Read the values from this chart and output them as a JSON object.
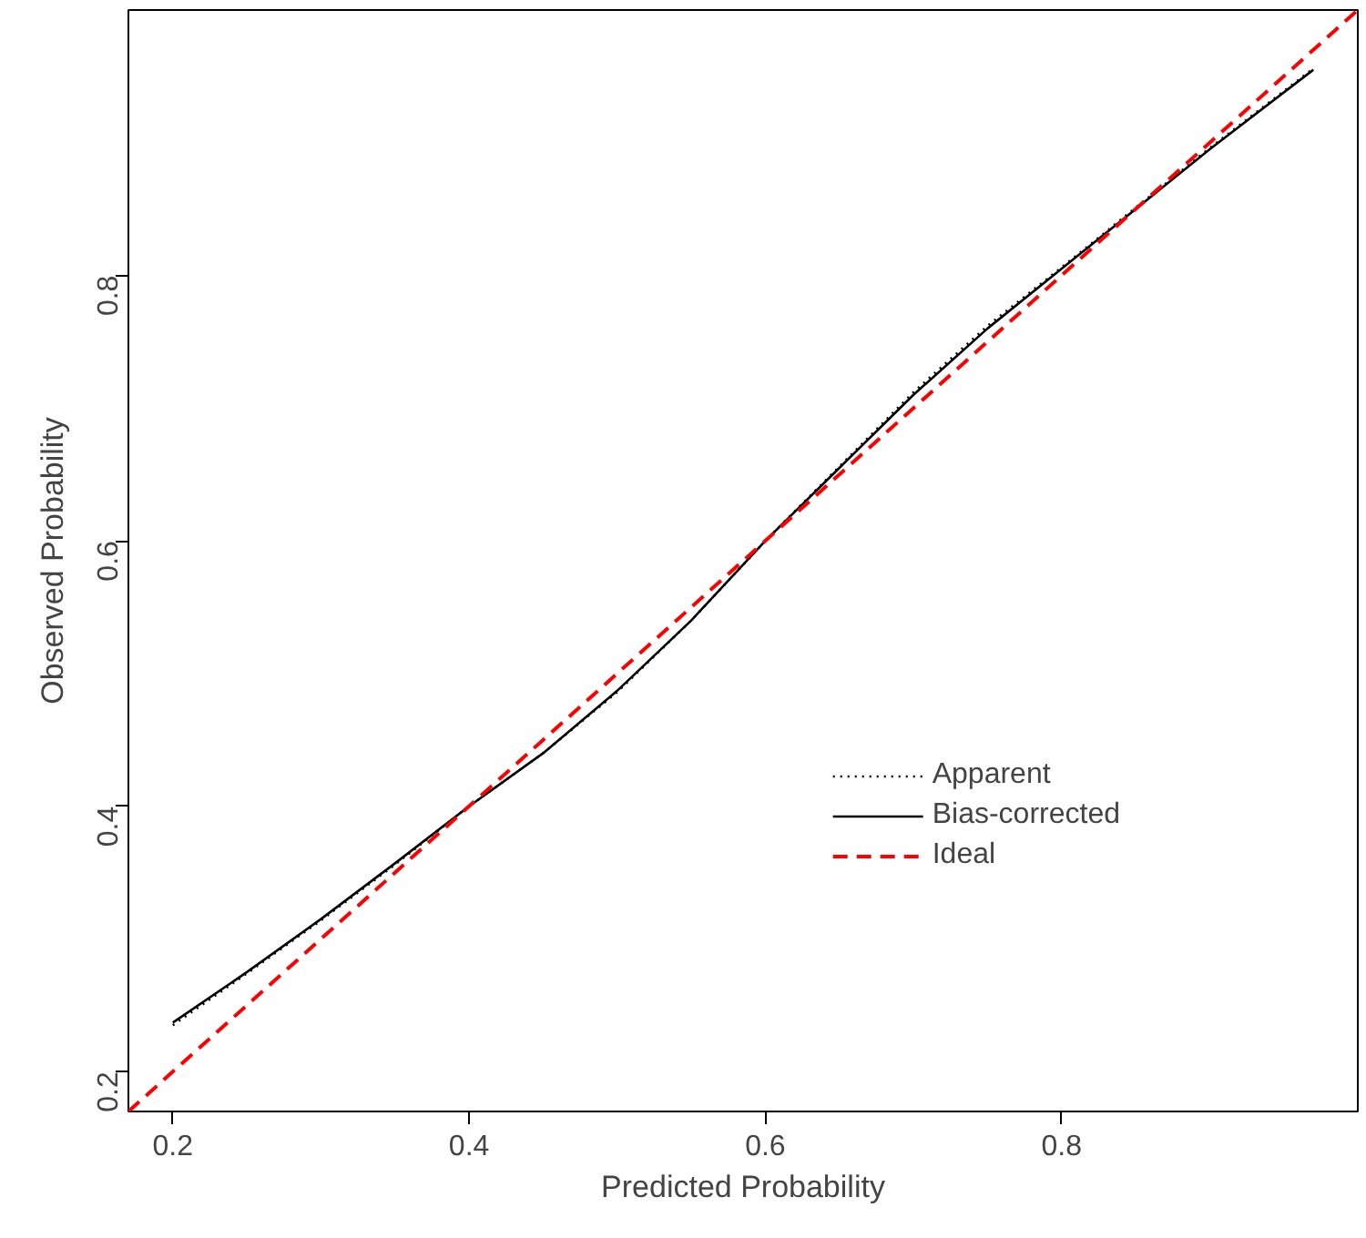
{
  "chart_data": {
    "type": "line",
    "xlabel": "Predicted Probability",
    "ylabel": "Observed Probability",
    "xlim": [
      0.17,
      1.0
    ],
    "ylim": [
      0.17,
      1.0
    ],
    "xticks": [
      0.2,
      0.4,
      0.6,
      0.8
    ],
    "yticks": [
      0.2,
      0.4,
      0.6,
      0.8
    ],
    "grid": false,
    "legend": "bottom right",
    "series": [
      {
        "name": "Apparent",
        "line_style": "dotted",
        "color": "#000000",
        "x": [
          0.2,
          0.25,
          0.3,
          0.35,
          0.4,
          0.45,
          0.5,
          0.55,
          0.6,
          0.65,
          0.7,
          0.75,
          0.8,
          0.85,
          0.9,
          0.97
        ],
        "values": [
          0.235,
          0.274,
          0.314,
          0.356,
          0.4,
          0.44,
          0.486,
          0.54,
          0.6,
          0.656,
          0.712,
          0.762,
          0.806,
          0.851,
          0.896,
          0.956
        ]
      },
      {
        "name": "Bias-corrected",
        "line_style": "solid",
        "color": "#000000",
        "x": [
          0.2,
          0.25,
          0.3,
          0.35,
          0.4,
          0.45,
          0.5,
          0.55,
          0.6,
          0.65,
          0.7,
          0.75,
          0.8,
          0.85,
          0.9,
          0.97
        ],
        "values": [
          0.237,
          0.275,
          0.315,
          0.357,
          0.4,
          0.44,
          0.487,
          0.54,
          0.6,
          0.655,
          0.71,
          0.76,
          0.805,
          0.85,
          0.895,
          0.955
        ]
      },
      {
        "name": "Ideal",
        "line_style": "dashed",
        "color": "#ff0000",
        "x": [
          0.17,
          1.0
        ],
        "values": [
          0.17,
          1.0
        ]
      }
    ]
  }
}
